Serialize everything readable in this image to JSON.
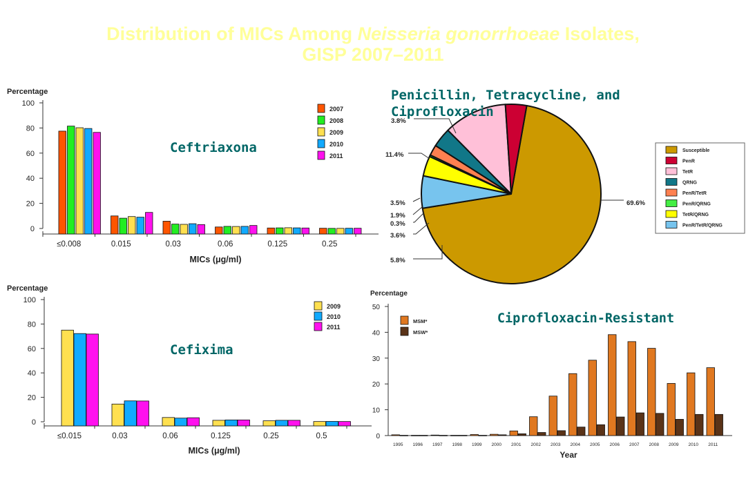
{
  "page": {
    "title_part1": "Distribution of MICs Among ",
    "title_italic": "Neisseria gonorrhoeae",
    "title_part2": " Isolates,",
    "title_line2": "GISP 2007–2011"
  },
  "chart_data": [
    {
      "id": "ceftriaxone",
      "type": "bar",
      "title": "Ceftriaxona",
      "ylabel": "Percentage",
      "xlabel": "MICs (μg/ml)",
      "ylim": [
        0,
        100
      ],
      "yticks": [
        0,
        20,
        40,
        60,
        80,
        100
      ],
      "categories": [
        "≤0.008",
        "0.015",
        "0.03",
        "0.06",
        "0.125",
        "0.25"
      ],
      "series": [
        {
          "name": "2007",
          "color": "#ff5500",
          "values": [
            77.5,
            10,
            5.8,
            1.2,
            0.4,
            0.2
          ]
        },
        {
          "name": "2008",
          "color": "#22ee22",
          "values": [
            81.5,
            8.2,
            3.5,
            1.7,
            0.5,
            0.1
          ]
        },
        {
          "name": "2009",
          "color": "#ffe050",
          "values": [
            80.2,
            9.5,
            3.3,
            1.6,
            0.6,
            0.1
          ]
        },
        {
          "name": "2010",
          "color": "#11aaff",
          "values": [
            79.6,
            9,
            3.8,
            1.7,
            0.5,
            0.2
          ]
        },
        {
          "name": "2011",
          "color": "#ff11ee",
          "values": [
            76.5,
            12.8,
            3.1,
            2.4,
            0.4,
            0.2
          ]
        }
      ]
    },
    {
      "id": "cefixime",
      "type": "bar",
      "title": "Cefixima",
      "ylabel": "Percentage",
      "xlabel": "MICs (μg/ml)",
      "ylim": [
        0,
        100
      ],
      "yticks": [
        0,
        20,
        40,
        60,
        80,
        100
      ],
      "categories": [
        "≤0.015",
        "0.03",
        "0.06",
        "0.125",
        "0.25",
        "0.5"
      ],
      "series": [
        {
          "name": "2009",
          "color": "#ffe050",
          "values": [
            75,
            14.5,
            3.5,
            1.2,
            0.8,
            0.2
          ]
        },
        {
          "name": "2010",
          "color": "#11aaff",
          "values": [
            72.2,
            17.1,
            3,
            1.5,
            1.2,
            0.3
          ]
        },
        {
          "name": "2011",
          "color": "#ff11ee",
          "values": [
            71.8,
            17,
            3.3,
            1.5,
            1.2,
            0.2
          ]
        }
      ]
    },
    {
      "id": "pen-tet-cip",
      "type": "pie",
      "title": "Penicillin, Tetracycline, and Ciprofloxacin",
      "slices": [
        {
          "name": "Susceptible",
          "value": 69.6,
          "label": "69.6%",
          "color": "#cc9900"
        },
        {
          "name": "PenR",
          "value": 3.8,
          "label": "3.8%",
          "color": "#cc0033"
        },
        {
          "name": "TetR",
          "value": 11.4,
          "label": "11.4%",
          "color": "#ffc0d8"
        },
        {
          "name": "QRNG",
          "value": 3.5,
          "label": "3.5%",
          "color": "#117788"
        },
        {
          "name": "PenR/TetR",
          "value": 1.9,
          "label": "1.9%",
          "color": "#ff8050"
        },
        {
          "name": "PenR/QRNG",
          "value": 0.3,
          "label": "0.3%",
          "color": "#44ee44"
        },
        {
          "name": "TetR/QRNG",
          "value": 3.6,
          "label": "3.6%",
          "color": "#ffff00"
        },
        {
          "name": "PenR/TetR/QRNG",
          "value": 5.8,
          "label": "5.8%",
          "color": "#77c4ee"
        }
      ]
    },
    {
      "id": "cipro-resistant",
      "type": "bar",
      "title": "Ciprofloxacin-Resistant",
      "ylabel": "Percentage",
      "xlabel": "Year",
      "ylim": [
        0,
        50
      ],
      "yticks": [
        0,
        10,
        20,
        30,
        40,
        50
      ],
      "categories": [
        "1995",
        "1996",
        "1997",
        "1998",
        "1999",
        "2000",
        "2001",
        "2002",
        "2003",
        "2004",
        "2005",
        "2006",
        "2007",
        "2008",
        "2009",
        "2010",
        "2011"
      ],
      "series": [
        {
          "name": "MSM*",
          "color": "#e07820",
          "values": [
            0.3,
            0.1,
            0.2,
            0.1,
            0.4,
            0.5,
            1.8,
            7.3,
            15.3,
            24,
            29.2,
            39.1,
            36.4,
            33.8,
            20.2,
            24.3,
            26.3
          ]
        },
        {
          "name": "MSW*",
          "color": "#5a3318",
          "values": [
            0.1,
            0.1,
            0.1,
            0.1,
            0.1,
            0.3,
            0.7,
            1.2,
            1.9,
            3.3,
            4.2,
            7.2,
            8.8,
            8.6,
            6.3,
            8.2,
            8.2
          ]
        }
      ]
    }
  ]
}
